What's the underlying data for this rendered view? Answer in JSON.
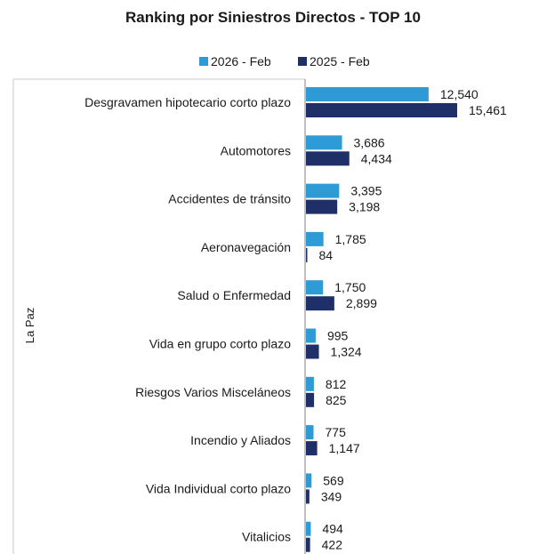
{
  "chart_data": {
    "type": "bar",
    "orientation": "horizontal",
    "title": "Ranking por Siniestros Directos - TOP 10",
    "group_label": "La Paz",
    "legend_position": "top",
    "categories": [
      "Desgravamen hipotecario corto plazo",
      "Automotores",
      "Accidentes de tránsito",
      "Aeronavegación",
      "Salud o Enfermedad",
      "Vida en grupo corto plazo",
      "Riesgos Varios Misceláneos",
      "Incendio y Aliados",
      "Vida Individual corto plazo",
      "Vitalicios"
    ],
    "series": [
      {
        "name": "2026 - Feb",
        "color": "#2e9bd6",
        "values": [
          12540,
          3686,
          3395,
          1785,
          1750,
          995,
          812,
          775,
          569,
          494
        ]
      },
      {
        "name": "2025 - Feb",
        "color": "#1f3068",
        "values": [
          15461,
          4434,
          3198,
          84,
          2899,
          1324,
          825,
          1147,
          349,
          422
        ]
      }
    ],
    "value_labels": [
      [
        "12,540",
        "3,686",
        "3,395",
        "1,785",
        "1,750",
        "995",
        "812",
        "775",
        "569",
        "494"
      ],
      [
        "15,461",
        "4,434",
        "3,198",
        "84",
        "2,899",
        "1,324",
        "825",
        "1,147",
        "349",
        "422"
      ]
    ],
    "xlim": [
      0,
      22000
    ],
    "grid": false
  }
}
